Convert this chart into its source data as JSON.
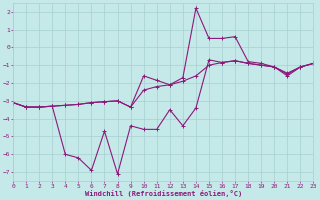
{
  "xlabel": "Windchill (Refroidissement éolien,°C)",
  "xlim": [
    0,
    23
  ],
  "ylim": [
    -7.5,
    2.5
  ],
  "yticks": [
    2,
    1,
    0,
    -1,
    -2,
    -3,
    -4,
    -5,
    -6,
    -7
  ],
  "xticks": [
    0,
    1,
    2,
    3,
    4,
    5,
    6,
    7,
    8,
    9,
    10,
    11,
    12,
    13,
    14,
    15,
    16,
    17,
    18,
    19,
    20,
    21,
    22,
    23
  ],
  "bg_color": "#c5e8e8",
  "grid_color": "#a8d0d0",
  "line_color": "#8b1a7a",
  "line1_x": [
    0,
    1,
    2,
    3,
    4,
    5,
    6,
    7,
    8,
    9,
    10,
    11,
    12,
    13,
    14,
    15,
    16,
    17,
    18,
    19,
    20,
    21,
    22,
    23
  ],
  "line1_y": [
    -3.1,
    -3.35,
    -3.35,
    -3.3,
    -3.25,
    -3.2,
    -3.1,
    -3.05,
    -3.0,
    -3.35,
    -1.6,
    -1.85,
    -2.1,
    -1.7,
    2.2,
    0.5,
    0.5,
    0.6,
    -0.8,
    -0.9,
    -1.1,
    -1.5,
    -1.1,
    -0.9
  ],
  "line2_x": [
    0,
    1,
    2,
    3,
    4,
    5,
    6,
    7,
    8,
    9,
    10,
    11,
    12,
    13,
    14,
    15,
    16,
    17,
    18,
    19,
    20,
    21,
    22,
    23
  ],
  "line2_y": [
    -3.1,
    -3.35,
    -3.35,
    -3.3,
    -3.25,
    -3.2,
    -3.1,
    -3.05,
    -3.0,
    -3.35,
    -2.4,
    -2.2,
    -2.1,
    -1.9,
    -1.6,
    -1.0,
    -0.85,
    -0.75,
    -0.9,
    -1.0,
    -1.1,
    -1.45,
    -1.1,
    -0.9
  ],
  "line3_x": [
    0,
    1,
    2,
    3,
    4,
    5,
    6,
    7,
    8,
    9,
    10,
    11,
    12,
    13,
    14,
    15,
    16,
    17,
    18,
    19,
    20,
    21,
    22,
    23
  ],
  "line3_y": [
    -3.1,
    -3.35,
    -3.35,
    -3.3,
    -6.0,
    -6.2,
    -6.9,
    -4.7,
    -7.1,
    -4.4,
    -4.6,
    -4.6,
    -3.5,
    -4.4,
    -3.4,
    -0.7,
    -0.85,
    -0.75,
    -0.9,
    -1.0,
    -1.1,
    -1.6,
    -1.1,
    -0.9
  ]
}
